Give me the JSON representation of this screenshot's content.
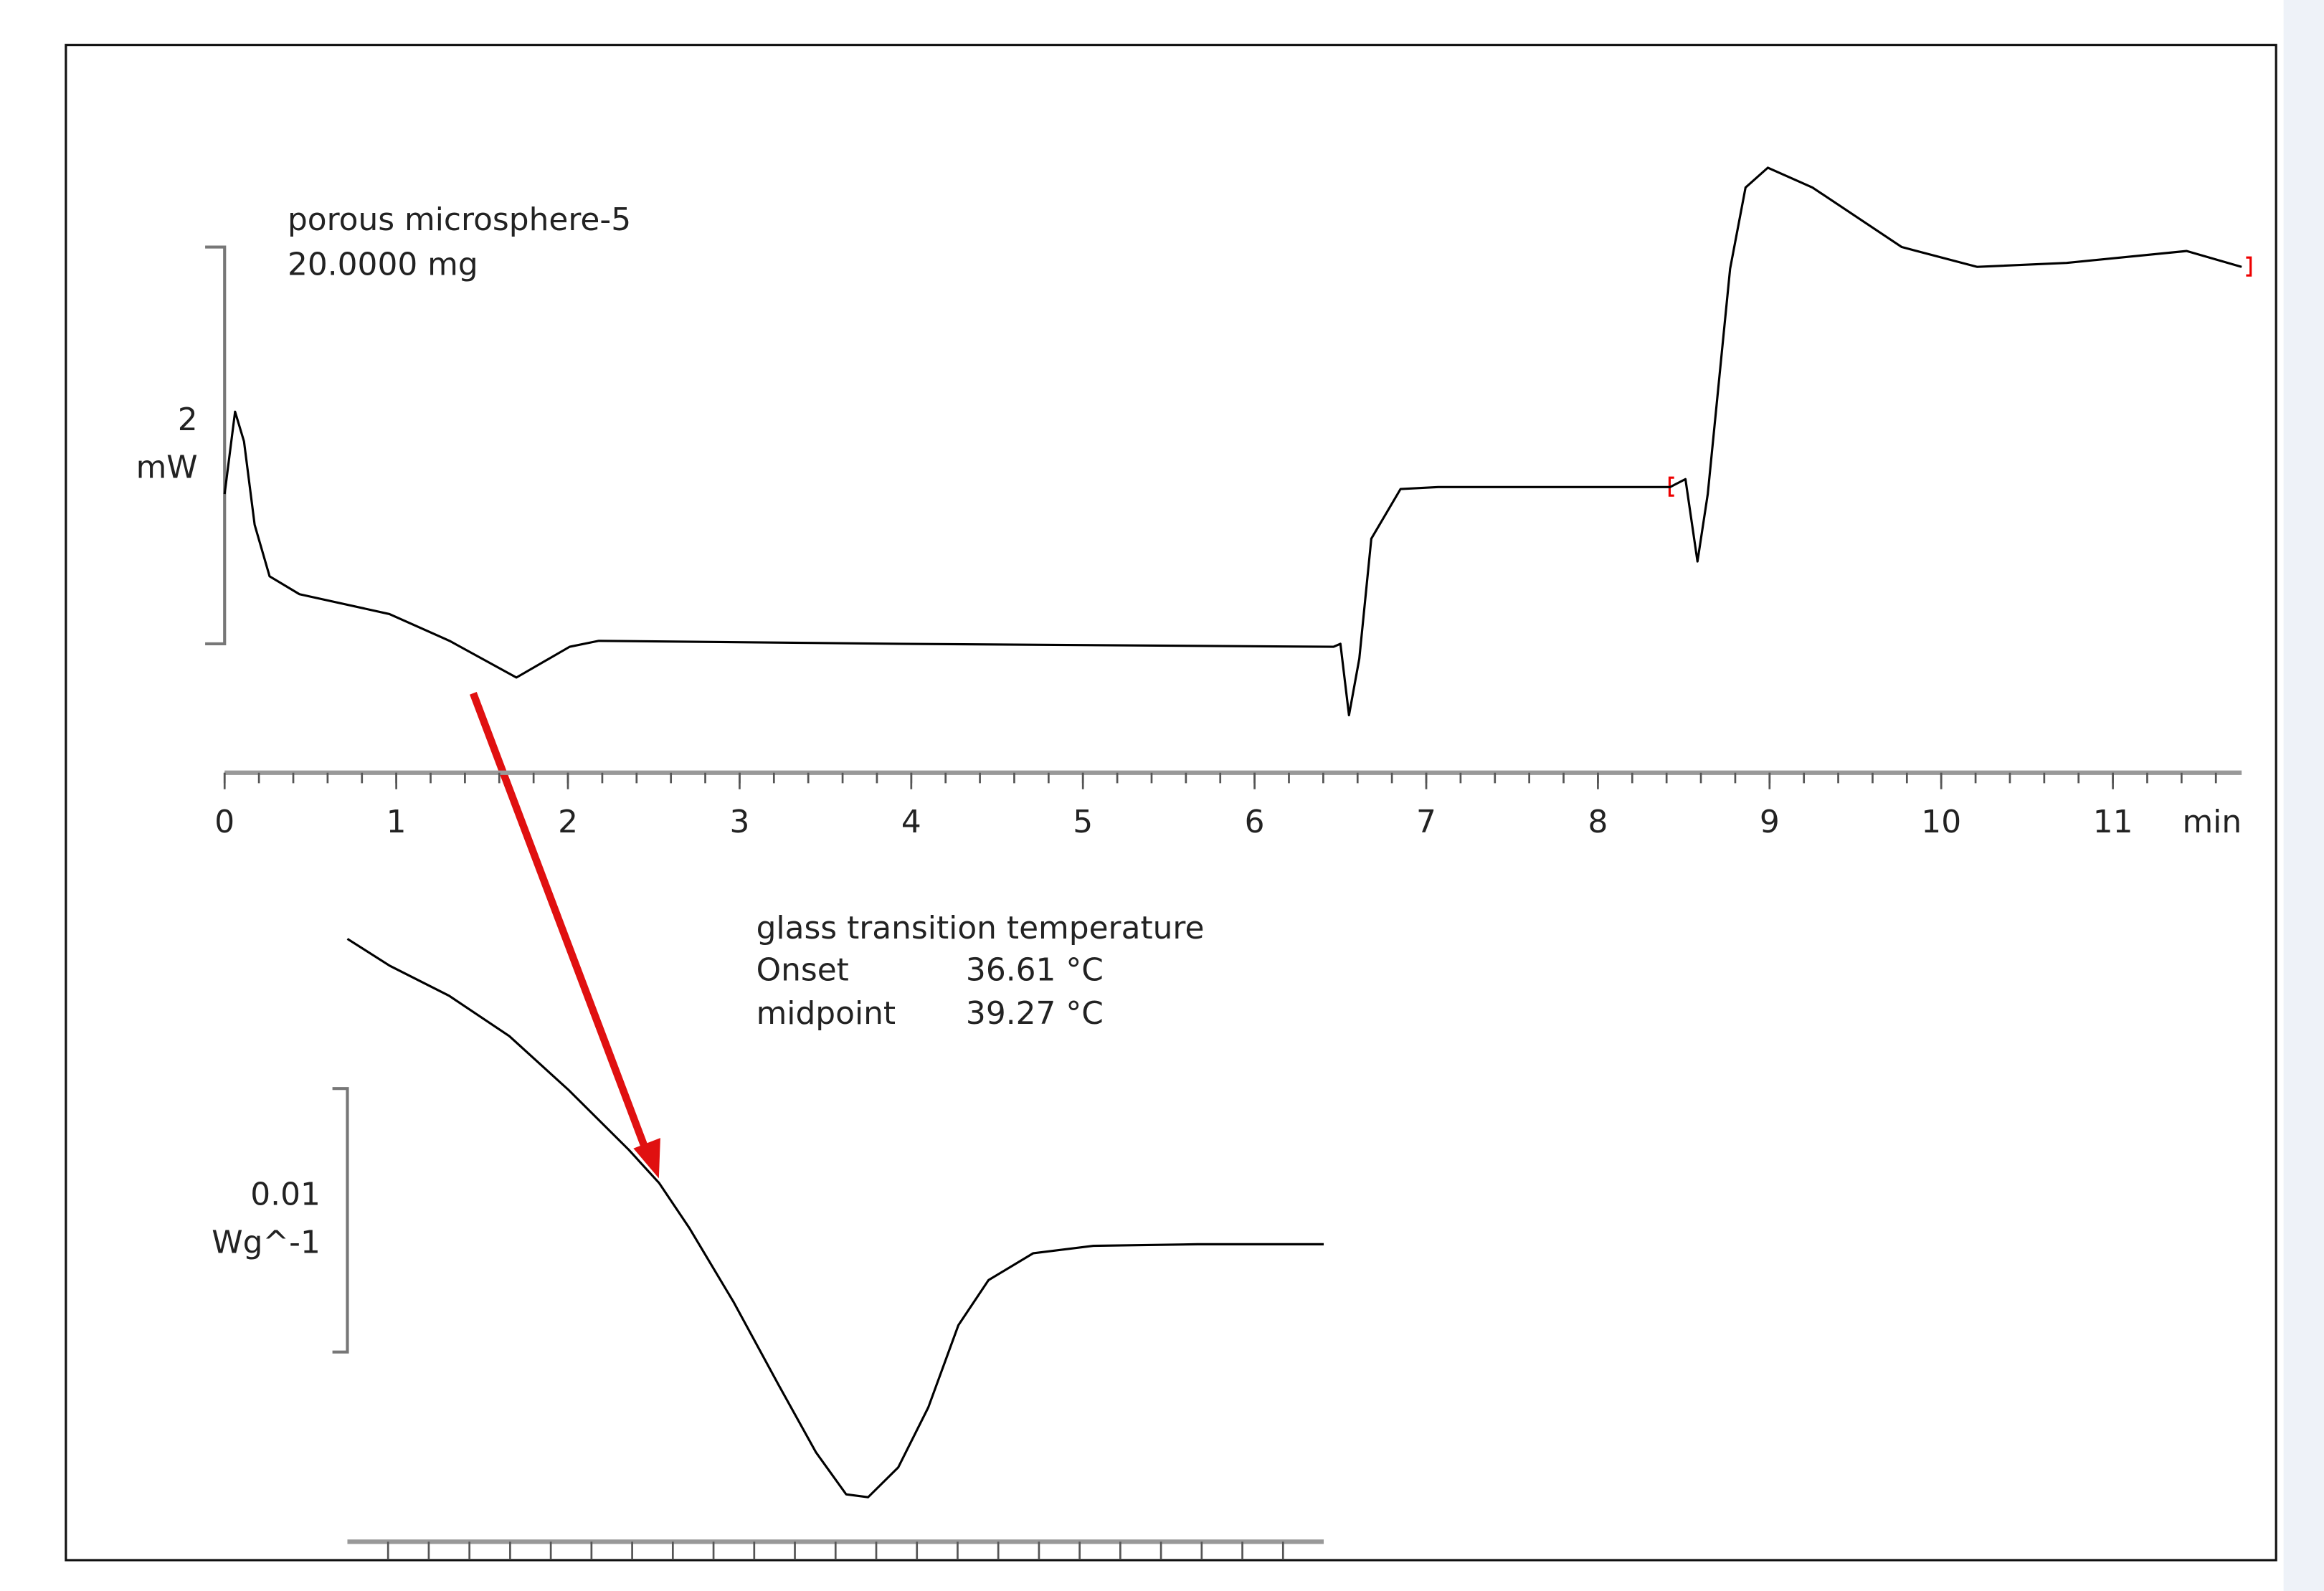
{
  "chart_data": [
    {
      "type": "line",
      "sample_info": [
        "porous microsphere-5",
        "20.0000 mg"
      ],
      "x": [
        0,
        0.061,
        0.113,
        0.175,
        0.262,
        0.436,
        0.96,
        1.31,
        1.7,
        2.01,
        2.18,
        3.93,
        6.46,
        6.5,
        6.55,
        6.61,
        6.68,
        6.85,
        7.07,
        8.42,
        8.51,
        8.58,
        8.64,
        8.77,
        8.86,
        8.99,
        9.25,
        9.77,
        10.21,
        10.73,
        11.43,
        11.75
      ],
      "values": [
        0.755,
        1.17,
        1.02,
        0.6,
        0.34,
        0.25,
        0.15,
        0.015,
        -0.17,
        -0.015,
        0.015,
        0,
        -0.015,
        0,
        -0.36,
        -0.075,
        0.53,
        0.78,
        0.79,
        0.79,
        0.83,
        0.415,
        0.755,
        1.89,
        2.3,
        2.4,
        2.3,
        2.0,
        1.9,
        1.92,
        1.98,
        1.9
      ],
      "color": "#000000",
      "xlim": [
        0,
        11.75
      ],
      "ylim": [
        -0.65,
        2.9
      ],
      "xticks": [
        0,
        1,
        2,
        3,
        4,
        5,
        6,
        7,
        8,
        9,
        10,
        11
      ],
      "minor_xticks": [
        0,
        0.2,
        0.4,
        0.6,
        0.8,
        1,
        1.2,
        1.4,
        1.6,
        1.8,
        2,
        2.2,
        2.4,
        2.6,
        2.8,
        3,
        3.2,
        3.4,
        3.6,
        3.8,
        4,
        4.2,
        4.4,
        4.6,
        4.8,
        5,
        5.2,
        5.4,
        5.6,
        5.8,
        6,
        6.2,
        6.4,
        6.6,
        6.8,
        7,
        7.2,
        7.4,
        7.6,
        7.8,
        8,
        8.2,
        8.4,
        8.6,
        8.8,
        9,
        9.2,
        9.4,
        9.6,
        9.8,
        10,
        10.2,
        10.4,
        10.6,
        10.8,
        11,
        11.2,
        11.4,
        11.6
      ],
      "xlabel": "min",
      "scale_bar": {
        "value": 2,
        "unit": "mW"
      }
    },
    {
      "type": "line",
      "annotation": {
        "title": "glass transition temperature",
        "rows": [
          [
            "Onset",
            "36.61 °C"
          ],
          [
            "midpoint",
            "39.27 °C"
          ]
        ]
      },
      "x": [
        1.1,
        1.152,
        1.225,
        1.299,
        1.372,
        1.446,
        1.483,
        1.52,
        1.575,
        1.63,
        1.676,
        1.713,
        1.74,
        1.777,
        1.814,
        1.851,
        1.888,
        1.943,
        2.017,
        2.145,
        2.3
      ],
      "values": [
        0.01568,
        0.01466,
        0.01352,
        0.01199,
        0.00994,
        0.00767,
        0.00642,
        0.00472,
        0.00188,
        -0.00125,
        -0.00381,
        -0.0054,
        -0.00551,
        -0.00438,
        -0.0021,
        0.00102,
        0.00273,
        0.00375,
        0.00403,
        0.00409,
        0.00409
      ],
      "color": "#000000",
      "xlim": [
        1.1,
        2.3
      ],
      "ylim": [
        -0.0072,
        0.0172
      ],
      "minor_xticks": [
        1.15,
        1.2,
        1.25,
        1.3,
        1.35,
        1.4,
        1.45,
        1.5,
        1.55,
        1.6,
        1.65,
        1.7,
        1.75,
        1.8,
        1.85,
        1.9,
        1.95,
        2.0,
        2.05,
        2.1,
        2.15,
        2.2,
        2.25
      ],
      "scale_bar": {
        "value": 0.01,
        "unit": "Wg^-1"
      }
    }
  ]
}
